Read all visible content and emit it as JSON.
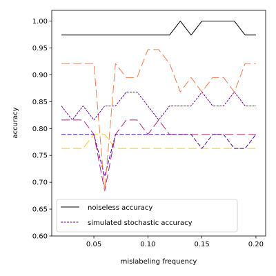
{
  "chart_data": {
    "type": "line",
    "xlabel": "mislabeling frequency",
    "ylabel": "accuracy",
    "xlim": [
      0.011,
      0.209
    ],
    "ylim": [
      0.6,
      1.02
    ],
    "x_ticks": [
      0.05,
      0.1,
      0.15,
      0.2
    ],
    "x_tick_labels": [
      "0.05",
      "0.10",
      "0.15",
      "0.20"
    ],
    "y_ticks": [
      0.6,
      0.65,
      0.7,
      0.75,
      0.8,
      0.85,
      0.9,
      0.95,
      1.0
    ],
    "y_tick_labels": [
      "0.60",
      "0.65",
      "0.70",
      "0.75",
      "0.80",
      "0.85",
      "0.90",
      "0.95",
      "1.00"
    ],
    "grid": false,
    "legend": {
      "position": "lower-left",
      "entries": [
        "noiseless accuracy",
        "simulated stochastic accuracy"
      ]
    },
    "x": [
      0.02,
      0.03,
      0.04,
      0.05,
      0.06,
      0.07,
      0.08,
      0.09,
      0.1,
      0.11,
      0.12,
      0.13,
      0.14,
      0.15,
      0.16,
      0.17,
      0.18,
      0.19,
      0.2
    ],
    "series": [
      {
        "name": "noiseless accuracy",
        "color": "#000000",
        "dash": "solid",
        "values": [
          0.974,
          0.974,
          0.974,
          0.974,
          0.974,
          0.974,
          0.974,
          0.974,
          0.974,
          0.974,
          0.974,
          1.0,
          0.974,
          1.0,
          1.0,
          1.0,
          1.0,
          0.974,
          0.974
        ]
      },
      {
        "name": "simulated stochastic accuracy",
        "color": "#6a00a8",
        "dash": "short",
        "values": [
          0.842,
          0.816,
          0.842,
          0.816,
          0.842,
          0.842,
          0.868,
          0.868,
          0.842,
          0.816,
          0.842,
          0.842,
          0.842,
          0.868,
          0.842,
          0.842,
          0.868,
          0.842,
          0.842
        ]
      },
      {
        "color": "#ef7f4f",
        "dash": "long",
        "values": [
          0.921,
          0.921,
          0.921,
          0.921,
          0.684,
          0.921,
          0.895,
          0.895,
          0.947,
          0.947,
          0.921,
          0.868,
          0.895,
          0.868,
          0.895,
          0.895,
          0.868,
          0.921,
          0.921
        ]
      },
      {
        "color": "#b4217a",
        "dash": "long",
        "values": [
          0.816,
          0.816,
          0.816,
          0.789,
          0.684,
          0.789,
          0.816,
          0.816,
          0.789,
          0.816,
          0.789,
          0.789,
          0.789,
          0.789,
          0.789,
          0.789,
          0.789,
          0.789,
          0.789
        ]
      },
      {
        "color": "#4c02a1",
        "dash": "medium",
        "values": [
          0.789,
          0.789,
          0.789,
          0.789,
          0.711,
          0.789,
          0.789,
          0.789,
          0.789,
          0.789,
          0.789,
          0.789,
          0.789,
          0.763,
          0.789,
          0.789,
          0.763,
          0.763,
          0.789
        ]
      },
      {
        "color": "#f9c624",
        "dash": "long",
        "values": [
          0.763,
          0.763,
          0.763,
          0.789,
          0.789,
          0.763,
          0.763,
          0.763,
          0.763,
          0.763,
          0.763,
          0.763,
          0.763,
          0.763,
          0.763,
          0.763,
          0.763,
          0.763,
          0.763
        ]
      }
    ]
  }
}
